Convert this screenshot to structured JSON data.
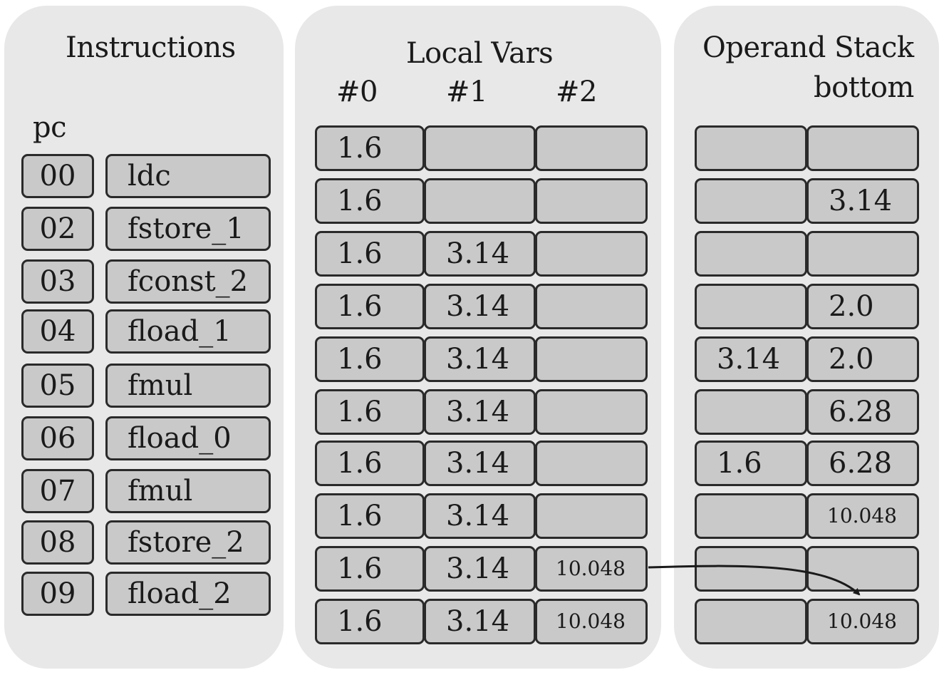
{
  "instructions": {
    "title": "Instructions",
    "pc_label": "pc",
    "rows": [
      {
        "pc": "00",
        "op": "ldc"
      },
      {
        "pc": "02",
        "op": "fstore_1"
      },
      {
        "pc": "03",
        "op": "fconst_2"
      },
      {
        "pc": "04",
        "op": "fload_1"
      },
      {
        "pc": "05",
        "op": "fmul"
      },
      {
        "pc": "06",
        "op": "fload_0"
      },
      {
        "pc": "07",
        "op": "fmul"
      },
      {
        "pc": "08",
        "op": "fstore_2"
      },
      {
        "pc": "09",
        "op": "fload_2"
      }
    ]
  },
  "local_vars": {
    "title": "Local Vars",
    "headers": [
      "#0",
      "#1",
      "#2"
    ],
    "rows": [
      [
        "1.6",
        "",
        ""
      ],
      [
        "1.6",
        "",
        ""
      ],
      [
        "1.6",
        "3.14",
        ""
      ],
      [
        "1.6",
        "3.14",
        ""
      ],
      [
        "1.6",
        "3.14",
        ""
      ],
      [
        "1.6",
        "3.14",
        ""
      ],
      [
        "1.6",
        "3.14",
        ""
      ],
      [
        "1.6",
        "3.14",
        ""
      ],
      [
        "1.6",
        "3.14",
        "10.048"
      ],
      [
        "1.6",
        "3.14",
        "10.048"
      ]
    ]
  },
  "operand_stack": {
    "title": "Operand Stack",
    "bottom_label": "bottom",
    "rows": [
      [
        "",
        ""
      ],
      [
        "",
        "3.14"
      ],
      [
        "",
        ""
      ],
      [
        "",
        "2.0"
      ],
      [
        "3.14",
        "2.0"
      ],
      [
        "",
        "6.28"
      ],
      [
        "1.6",
        "6.28"
      ],
      [
        "",
        "10.048"
      ],
      [
        "",
        ""
      ],
      [
        "",
        "10.048"
      ]
    ]
  },
  "colors": {
    "panel": "#e8e8e8",
    "cell_fill": "#c9c9c9",
    "cell_border": "#2a2a2a"
  }
}
